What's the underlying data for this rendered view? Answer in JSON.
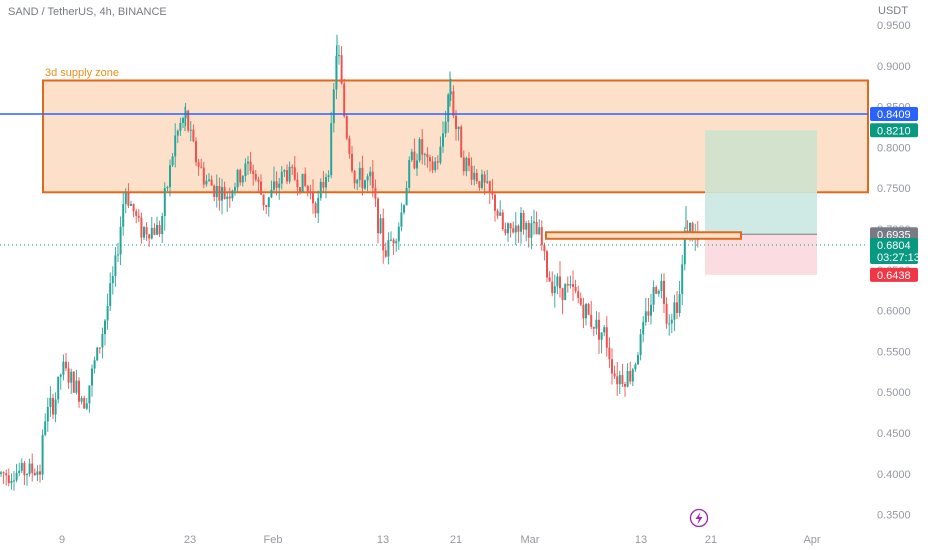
{
  "header": {
    "symbol_line": "SAND / TetherUS, 4h, BINANCE",
    "currency": "USDT"
  },
  "colors": {
    "up": "#26a69a",
    "down": "#ef5350",
    "zone_fill": "#fde0c9",
    "zone_border": "#e06a1b",
    "blue_line": "#2962ff",
    "profit_fill": "#cfe9e5",
    "loss_fill": "#fbdde1",
    "profit_upper_fill": "#d2e2cc",
    "current_tag": "#089981",
    "target_tag": "#089981",
    "stop_tag": "#f23645",
    "entry_tag": "#787b86",
    "lightning": "#9c27b0"
  },
  "annotations": {
    "zone_label": "3d supply zone",
    "lightning_icon": "lightning-icon"
  },
  "tags": {
    "blue_level": "0.8409",
    "target": "0.8210",
    "entry": "0.6935",
    "current": "0.6804",
    "countdown": "03:27:13",
    "stop": "0.6438"
  },
  "chart_data": {
    "type": "candlestick",
    "title": "SAND / TetherUS, 4h, BINANCE",
    "y_axis_unit": "USDT",
    "ylim": [
      0.33,
      0.97
    ],
    "y_ticks": [
      0.95,
      0.9,
      0.85,
      0.8,
      0.75,
      0.7,
      0.65,
      0.6,
      0.55,
      0.5,
      0.45,
      0.4,
      0.35
    ],
    "x_ticks": [
      "9",
      "23",
      "Feb",
      "13",
      "21",
      "Mar",
      "13",
      "21",
      "Apr"
    ],
    "levels": {
      "supply_zone": {
        "label": "3d supply zone",
        "low": 0.745,
        "high": 0.882
      },
      "blue_line": 0.8409,
      "position": {
        "entry": 0.6935,
        "target": 0.821,
        "stop": 0.6438
      },
      "current_price": 0.6804,
      "orange_box": {
        "low": 0.688,
        "high": 0.696
      }
    },
    "price_path": [
      [
        0,
        0.4
      ],
      [
        40,
        0.405
      ],
      [
        45,
        0.47
      ],
      [
        55,
        0.49
      ],
      [
        62,
        0.53
      ],
      [
        85,
        0.49
      ],
      [
        100,
        0.56
      ],
      [
        115,
        0.65
      ],
      [
        125,
        0.75
      ],
      [
        140,
        0.7
      ],
      [
        160,
        0.7
      ],
      [
        175,
        0.81
      ],
      [
        185,
        0.84
      ],
      [
        195,
        0.79
      ],
      [
        205,
        0.76
      ],
      [
        225,
        0.74
      ],
      [
        250,
        0.78
      ],
      [
        265,
        0.73
      ],
      [
        285,
        0.77
      ],
      [
        300,
        0.76
      ],
      [
        318,
        0.73
      ],
      [
        330,
        0.79
      ],
      [
        337,
        0.93
      ],
      [
        345,
        0.83
      ],
      [
        355,
        0.76
      ],
      [
        370,
        0.76
      ],
      [
        385,
        0.67
      ],
      [
        400,
        0.71
      ],
      [
        410,
        0.78
      ],
      [
        420,
        0.8
      ],
      [
        430,
        0.77
      ],
      [
        440,
        0.79
      ],
      [
        450,
        0.88
      ],
      [
        455,
        0.83
      ],
      [
        465,
        0.78
      ],
      [
        480,
        0.76
      ],
      [
        495,
        0.73
      ],
      [
        505,
        0.69
      ],
      [
        520,
        0.71
      ],
      [
        540,
        0.69
      ],
      [
        548,
        0.64
      ],
      [
        560,
        0.63
      ],
      [
        575,
        0.62
      ],
      [
        590,
        0.59
      ],
      [
        605,
        0.57
      ],
      [
        615,
        0.52
      ],
      [
        630,
        0.52
      ],
      [
        640,
        0.56
      ],
      [
        650,
        0.61
      ],
      [
        660,
        0.64
      ],
      [
        668,
        0.59
      ],
      [
        680,
        0.62
      ],
      [
        686,
        0.71
      ],
      [
        692,
        0.695
      ],
      [
        700,
        0.68
      ]
    ]
  }
}
